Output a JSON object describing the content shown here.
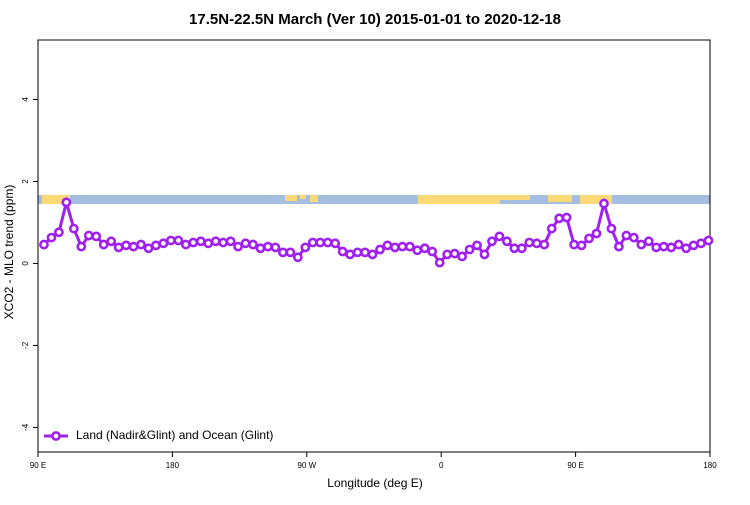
{
  "chart_data": {
    "type": "line",
    "title": "17.5N-22.5N March (Ver 10)   2015-01-01 to 2020-12-18",
    "x_label": "Longitude (deg E)",
    "y_label": "XCO2 - MLO trend (ppm)",
    "xlim": [
      90,
      540
    ],
    "ylim": [
      -4.6,
      5.45
    ],
    "xticks": [
      {
        "value": 90,
        "label": "90 E"
      },
      {
        "value": 180,
        "label": "180"
      },
      {
        "value": 270,
        "label": "90 W"
      },
      {
        "value": 360,
        "label": "0"
      },
      {
        "value": 450,
        "label": "90 E"
      },
      {
        "value": 540,
        "label": "180"
      }
    ],
    "yticks": [
      -4,
      -2,
      0,
      2,
      4
    ],
    "legend": "bottom-left",
    "x": [
      94,
      99,
      104,
      109,
      114,
      119,
      124,
      129,
      134,
      139,
      144,
      149,
      154,
      159,
      164,
      169,
      174,
      179,
      184,
      189,
      194,
      199,
      204,
      209,
      214,
      219,
      224,
      229,
      234,
      239,
      244,
      249,
      254,
      259,
      264,
      269,
      274,
      279,
      284,
      289,
      294,
      299,
      304,
      309,
      314,
      319,
      324,
      329,
      334,
      339,
      344,
      349,
      354,
      359,
      364,
      369,
      374,
      379,
      384,
      389,
      394,
      399,
      404,
      409,
      414,
      419,
      424,
      429,
      434,
      439,
      444,
      449,
      454,
      459,
      464,
      469,
      474,
      479,
      484,
      489,
      494,
      499,
      504,
      509,
      514,
      519,
      524,
      529,
      534,
      539
    ],
    "series": [
      {
        "name": "Land (Nadir&Glint) and Ocean (Glint)",
        "color": "#a020f0",
        "values": [
          0.46,
          0.63,
          0.76,
          1.49,
          0.85,
          0.41,
          0.68,
          0.66,
          0.46,
          0.54,
          0.39,
          0.44,
          0.41,
          0.46,
          0.37,
          0.44,
          0.49,
          0.56,
          0.56,
          0.46,
          0.51,
          0.54,
          0.49,
          0.54,
          0.51,
          0.54,
          0.41,
          0.49,
          0.46,
          0.37,
          0.41,
          0.39,
          0.27,
          0.27,
          0.15,
          0.39,
          0.51,
          0.51,
          0.51,
          0.49,
          0.29,
          0.22,
          0.27,
          0.27,
          0.22,
          0.34,
          0.44,
          0.39,
          0.41,
          0.41,
          0.32,
          0.37,
          0.29,
          0.02,
          0.22,
          0.24,
          0.17,
          0.34,
          0.44,
          0.22,
          0.54,
          0.66,
          0.54,
          0.37,
          0.37,
          0.51,
          0.49,
          0.46,
          0.85,
          1.1,
          1.12,
          0.46,
          0.44,
          0.61,
          0.73,
          1.46,
          0.85,
          0.41,
          0.68,
          0.63,
          0.46,
          0.54,
          0.39,
          0.41,
          0.39,
          0.46,
          0.37,
          0.44,
          0.49,
          0.56
        ]
      }
    ]
  }
}
